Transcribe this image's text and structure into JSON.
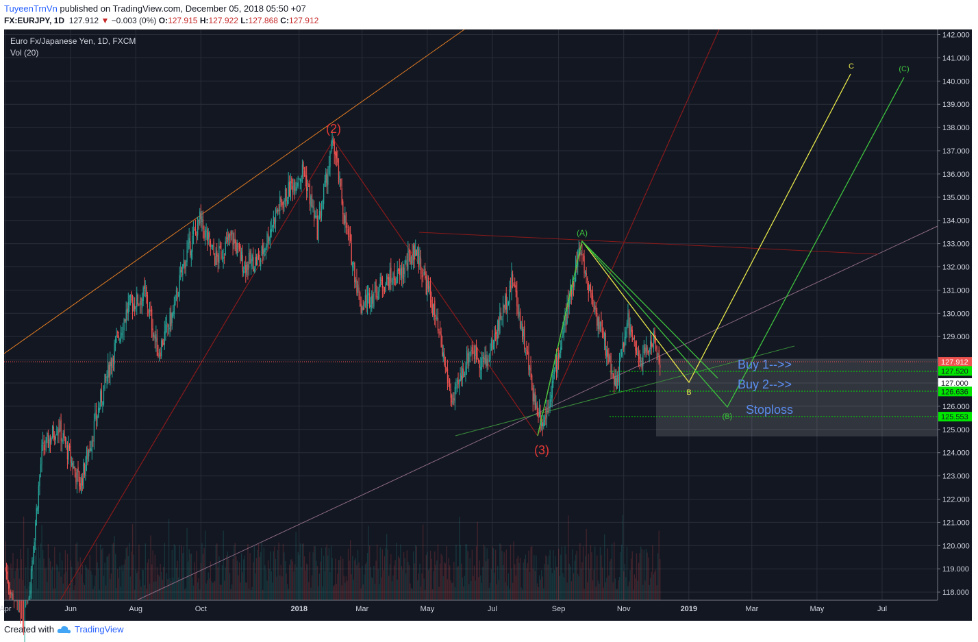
{
  "header": {
    "publisher": "TuyeenTrnVn",
    "published_text": "published on TradingView.com, December 05, 2018 05:50 +07",
    "symbol": "FX:EURJPY, 1D",
    "last": "127.912",
    "change": "−0.003 (0%)",
    "o_label": "O:",
    "o": "127.915",
    "h_label": "H:",
    "h": "127.922",
    "l_label": "L:",
    "l": "127.868",
    "c_label": "C:",
    "c": "127.912"
  },
  "legend": {
    "title": "Euro Fx/Japanese Yen, 1D, FXCM",
    "indicator": "Vol (20)"
  },
  "footer": {
    "created_with": "Created with",
    "brand": "TradingView"
  },
  "colors": {
    "background": "#131722",
    "grid": "#2a2e39",
    "up": "#26a69a",
    "down": "#ef5350",
    "last_price": "#ef5350",
    "buy_level": "#00e600",
    "annotation_blue": "#5b8dee",
    "wave_red": "#d32f2f",
    "wave_yellow": "#e8e84a",
    "wave_green": "#3ec43e"
  },
  "chart_data": {
    "type": "candlestick",
    "symbol": "FX:EURJPY",
    "interval": "1D",
    "y_range": [
      117.8,
      142.2
    ],
    "y_ticks": [
      "142.000",
      "141.000",
      "140.000",
      "139.000",
      "138.000",
      "137.000",
      "136.000",
      "135.000",
      "134.000",
      "133.000",
      "132.000",
      "131.000",
      "130.000",
      "129.000",
      "128.000",
      "127.000",
      "126.000",
      "125.000",
      "124.000",
      "123.000",
      "122.000",
      "121.000",
      "120.000",
      "119.000",
      "118.000"
    ],
    "x_ticks": [
      "Apr",
      "Jun",
      "Aug",
      "Oct",
      "2018",
      "Mar",
      "May",
      "Jul",
      "Sep",
      "Nov",
      "2019",
      "Mar",
      "May",
      "Jul"
    ],
    "price_path": [
      [
        "2017-04-01",
        119.0
      ],
      [
        "2017-04-18",
        115.5
      ],
      [
        "2017-05-05",
        124.0
      ],
      [
        "2017-05-20",
        125.2
      ],
      [
        "2017-06-10",
        122.6
      ],
      [
        "2017-06-25",
        125.5
      ],
      [
        "2017-07-10",
        128.2
      ],
      [
        "2017-07-25",
        130.3
      ],
      [
        "2017-08-10",
        130.8
      ],
      [
        "2017-08-22",
        128.3
      ],
      [
        "2017-09-05",
        130.0
      ],
      [
        "2017-09-15",
        132.2
      ],
      [
        "2017-09-30",
        134.0
      ],
      [
        "2017-10-15",
        132.3
      ],
      [
        "2017-10-30",
        133.3
      ],
      [
        "2017-11-10",
        132.1
      ],
      [
        "2017-11-25",
        132.3
      ],
      [
        "2017-12-10",
        134.3
      ],
      [
        "2017-12-25",
        135.5
      ],
      [
        "2018-01-05",
        136.2
      ],
      [
        "2018-01-18",
        133.6
      ],
      [
        "2018-02-02",
        137.4
      ],
      [
        "2018-02-12",
        134.2
      ],
      [
        "2018-02-28",
        130.3
      ],
      [
        "2018-03-20",
        131.3
      ],
      [
        "2018-04-05",
        131.6
      ],
      [
        "2018-04-20",
        132.8
      ],
      [
        "2018-05-05",
        130.5
      ],
      [
        "2018-05-25",
        126.1
      ],
      [
        "2018-06-10",
        128.5
      ],
      [
        "2018-06-25",
        127.8
      ],
      [
        "2018-07-10",
        130.0
      ],
      [
        "2018-07-20",
        131.5
      ],
      [
        "2018-07-30",
        129.0
      ],
      [
        "2018-08-10",
        126.1
      ],
      [
        "2018-08-18",
        125.3
      ],
      [
        "2018-09-05",
        129.1
      ],
      [
        "2018-09-20",
        132.8
      ],
      [
        "2018-10-05",
        130.2
      ],
      [
        "2018-10-25",
        126.9
      ],
      [
        "2018-11-05",
        129.7
      ],
      [
        "2018-11-15",
        127.8
      ],
      [
        "2018-11-28",
        128.9
      ],
      [
        "2018-12-05",
        127.912
      ]
    ],
    "annotations": [
      {
        "label": "(2)",
        "color": "red"
      },
      {
        "label": "(3)",
        "color": "red"
      },
      {
        "label": "(A)",
        "color": "green"
      },
      {
        "label": "B",
        "color": "yellow"
      },
      {
        "label": "(B)",
        "color": "green"
      },
      {
        "label": "C",
        "color": "yellow"
      },
      {
        "label": "(C)",
        "color": "green"
      }
    ],
    "text_annotations": [
      "Buy 1-->>",
      "Buy 2-->>",
      "Stoploss"
    ],
    "price_labels": [
      {
        "value": "127.912",
        "kind": "last"
      },
      {
        "value": "127.520",
        "kind": "level"
      },
      {
        "value": "127.000",
        "kind": "tick"
      },
      {
        "value": "126.636",
        "kind": "level"
      },
      {
        "value": "125.553",
        "kind": "level"
      }
    ],
    "levels": [
      127.52,
      126.636,
      125.553
    ],
    "last_price": 127.912
  }
}
